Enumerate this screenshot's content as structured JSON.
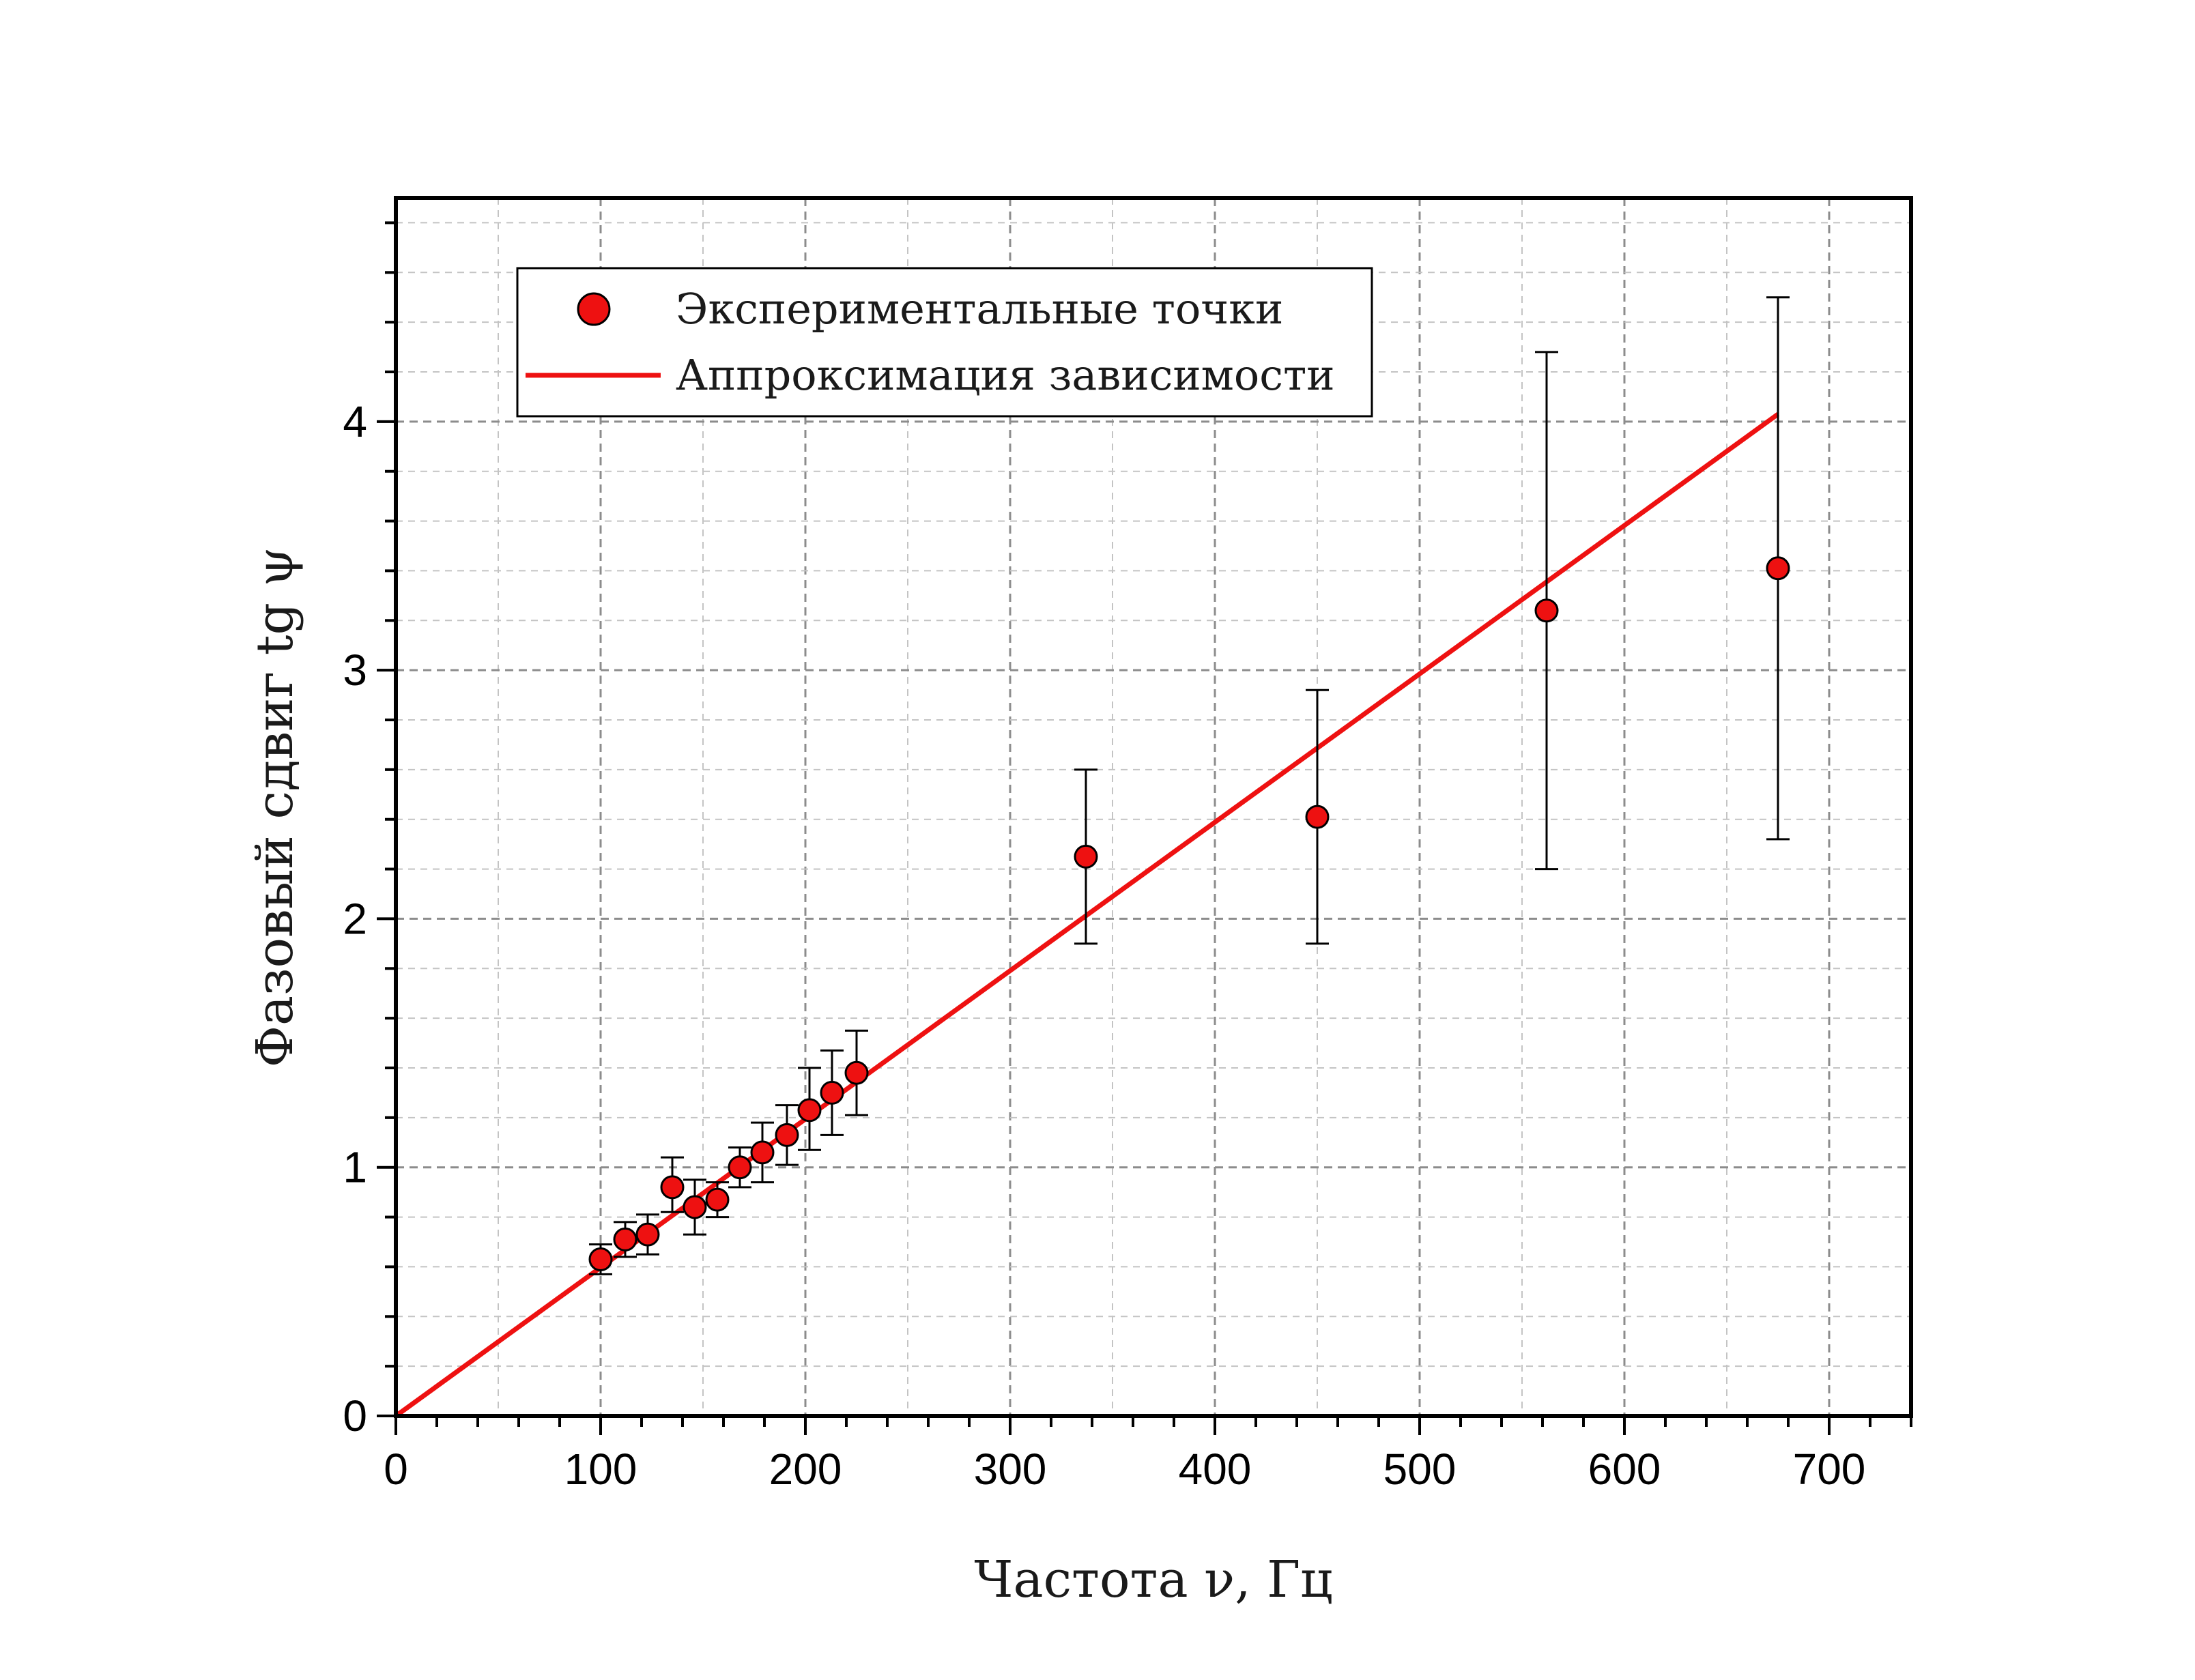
{
  "chart_data": {
    "type": "scatter",
    "xlabel": "Частота ν, Гц",
    "ylabel": "Фазовый сдвиг tg ψ",
    "xlim": [
      0,
      740
    ],
    "ylim": [
      0,
      4.9
    ],
    "xticks": [
      "0",
      "100",
      "200",
      "300",
      "400",
      "500",
      "600",
      "700"
    ],
    "yticks": [
      "0",
      "1",
      "2",
      "3",
      "4"
    ],
    "grid": true,
    "legend_position": "top-left",
    "colors": {
      "points": "#ee1111",
      "fit_line": "#ee1111",
      "error_bars": "#000000"
    },
    "series": [
      {
        "name": "Экспериментальные точки",
        "kind": "points-with-error-bars",
        "x": [
          100,
          112,
          123,
          135,
          146,
          157,
          168,
          179,
          191,
          202,
          213,
          225,
          337,
          450,
          562,
          675
        ],
        "y": [
          0.63,
          0.71,
          0.73,
          0.92,
          0.84,
          0.87,
          1.0,
          1.06,
          1.13,
          1.23,
          1.3,
          1.38,
          2.25,
          2.41,
          3.24,
          3.41
        ],
        "err_low": [
          0.06,
          0.07,
          0.08,
          0.1,
          0.11,
          0.07,
          0.08,
          0.12,
          0.12,
          0.16,
          0.17,
          0.17,
          0.35,
          0.51,
          1.04,
          1.09
        ],
        "err_high": [
          0.06,
          0.07,
          0.08,
          0.12,
          0.11,
          0.07,
          0.08,
          0.12,
          0.12,
          0.17,
          0.17,
          0.17,
          0.35,
          0.51,
          1.04,
          1.09
        ]
      },
      {
        "name": "Аппроксимация зависимости",
        "kind": "line",
        "x": [
          0,
          675
        ],
        "y": [
          0,
          4.03
        ]
      }
    ]
  }
}
